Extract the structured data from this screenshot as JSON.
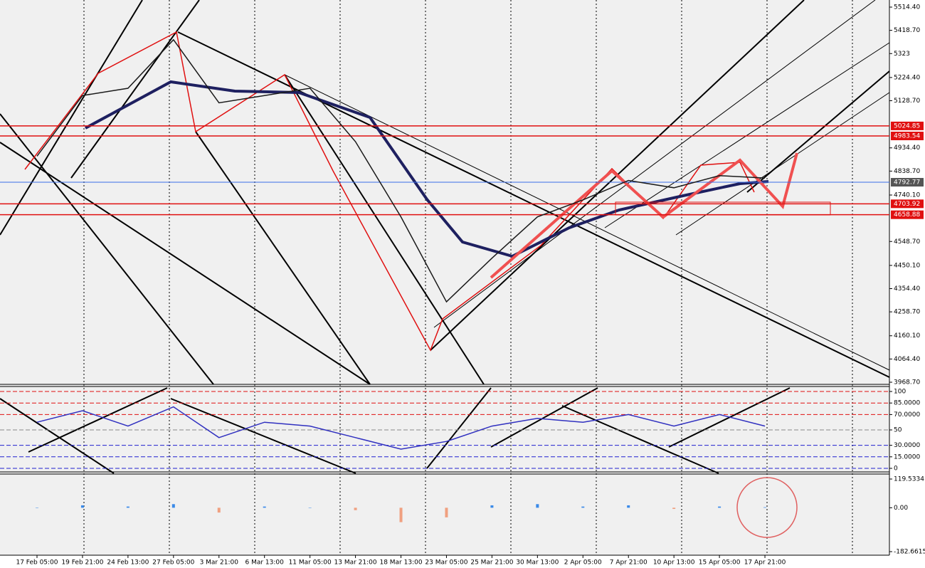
{
  "chart_data": [
    {
      "type": "line",
      "categories": [
        "17 Feb 05:00",
        "19 Feb 21:00",
        "24 Feb 13:00",
        "27 Feb 05:00",
        "3 Mar 21:00",
        "6 Mar 13:00",
        "11 Mar 05:00",
        "13 Mar 21:00",
        "18 Mar 13:00",
        "23 Mar 05:00",
        "25 Mar 21:00",
        "30 Mar 13:00",
        "2 Apr 05:00",
        "7 Apr 21:00",
        "10 Apr 13:00",
        "15 Apr 05:00",
        "17 Apr 21:00"
      ],
      "series": [
        {
          "color": "#1a1a1a",
          "values": [
            4900,
            5150,
            5180,
            5380,
            5120,
            5150,
            5180,
            4960,
            4650,
            4300,
            4480,
            4650,
            4720,
            4800,
            4770,
            4820,
            4810
          ]
        }
      ],
      "ylim": [
        3968.7,
        5514.4
      ],
      "yticks": [
        {
          "value": 5514.4,
          "label": "5514.40"
        },
        {
          "value": 5418.7,
          "label": "5418.70"
        },
        5323,
        {
          "value": 5224.4,
          "label": "5224.40"
        },
        {
          "value": 5128.7,
          "label": "5128.70"
        },
        {
          "value": 4934.4,
          "label": "4934.40"
        },
        {
          "value": 4838.7,
          "label": "4838.70"
        },
        {
          "value": 4740.1,
          "label": "4740.10"
        },
        {
          "value": 4548.7,
          "label": "4548.70"
        },
        {
          "value": 4450.1,
          "label": "4450.10"
        },
        {
          "value": 4354.4,
          "label": "4354.40"
        },
        {
          "value": 4258.7,
          "label": "4258.70"
        },
        {
          "value": 4160.1,
          "label": "4160.10"
        },
        {
          "value": 4064.4,
          "label": "4064.40"
        },
        {
          "value": 3968.7,
          "label": "3968.70"
        }
      ],
      "levels": [
        5024.85,
        4983.54,
        4792.77,
        4703.92,
        4658.88
      ],
      "level_colors": [
        "#e01010",
        "#e01010",
        "#3a6ee8",
        "#e01010",
        "#e01010"
      ]
    },
    {
      "type": "line",
      "series": [
        {
          "color": "#3030c0",
          "values": [
            60,
            75,
            55,
            80,
            40,
            60,
            55,
            40,
            25,
            35,
            55,
            65,
            60,
            70,
            55,
            70,
            55
          ]
        }
      ],
      "ylim": [
        0,
        100
      ],
      "yticks": [
        100,
        {
          "value": 85,
          "label": "85.0000"
        },
        {
          "value": 70,
          "label": "70.0000"
        },
        50,
        {
          "value": 30,
          "label": "30.0000"
        },
        {
          "value": 15,
          "label": "15.0000"
        },
        0
      ]
    },
    {
      "type": "bar",
      "series": [
        {
          "color": "#3a8ae8",
          "negative_color": "#f0a080",
          "values": [
            0,
            10,
            5,
            15,
            -20,
            5,
            0,
            -10,
            -60,
            -40,
            10,
            15,
            5,
            10,
            -5,
            5,
            2
          ]
        }
      ],
      "ylim": [
        -182.6615,
        119.5334
      ],
      "yticks": [
        119.5334,
        {
          "value": 0,
          "label": "0.00"
        },
        -182.6615
      ]
    }
  ]
}
